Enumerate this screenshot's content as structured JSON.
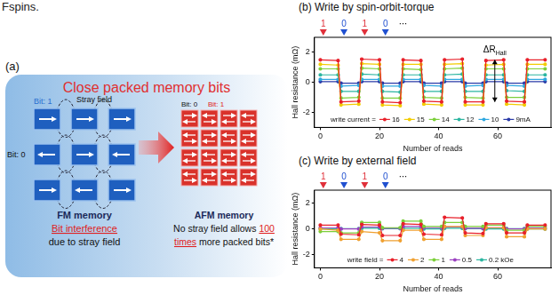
{
  "header_fragment": "Fspins.",
  "panel_a": {
    "label": "(a)",
    "title": "Close packed memory bits",
    "fm": {
      "bit1_label": "Bit: 1",
      "bit0_label": "Bit: 0",
      "stray_label": "Stray field",
      "caption": [
        [
          {
            "text": "FM memory",
            "style": "bold"
          }
        ],
        [
          {
            "text": "Bit interference",
            "style": "red"
          }
        ],
        [
          {
            "text": "due to stray field",
            "style": "plain"
          }
        ]
      ]
    },
    "afm": {
      "bit0_label": "Bit: 0",
      "bit1_label": "Bit: 1",
      "caption": [
        [
          {
            "text": "AFM memory",
            "style": "bold"
          }
        ],
        [
          {
            "text": "No stray field allows ",
            "style": "plain"
          },
          {
            "text": "100",
            "style": "red"
          }
        ],
        [
          {
            "text": "times",
            "style": "red"
          },
          {
            "text": " more packed bits*",
            "style": "plain"
          }
        ]
      ]
    }
  },
  "chart_data": [
    {
      "type": "line",
      "title": "(b) Write by spin-orbit-torque",
      "x_label": "Number of reads",
      "y_label": "Hall resistance (mΩ)",
      "xlim": [
        -2,
        78
      ],
      "xticks": [
        0,
        20,
        40,
        60
      ],
      "ylim": [
        -3,
        3
      ],
      "yticks": [
        -2,
        0,
        2
      ],
      "grid": false,
      "legend": "lower center",
      "legend_title": "write current =",
      "marker": "circle",
      "line_style": "solid",
      "write_markers": [
        {
          "label": "1",
          "x": 1,
          "color": "#e0303a"
        },
        {
          "label": "0",
          "x": 8,
          "color": "#2050d0"
        },
        {
          "label": "1",
          "x": 15,
          "color": "#e0303a"
        },
        {
          "label": "0",
          "x": 22,
          "color": "#2050d0"
        },
        {
          "label": "⋯",
          "x": 28
        }
      ],
      "annotations": [
        {
          "text": "ΔR",
          "subscript": "Hall",
          "x": 59,
          "y": 2.2,
          "arrow_from": -1.3,
          "arrow_to": 1.5
        }
      ],
      "x": [
        0,
        6,
        7,
        13,
        14,
        20,
        21,
        27,
        28,
        34,
        35,
        41,
        42,
        48,
        49,
        55,
        56,
        62,
        63,
        69,
        70,
        76
      ],
      "series": [
        {
          "name": "16",
          "color": "#e8202a",
          "values": [
            1.5,
            1.45,
            -1.3,
            -1.25,
            1.55,
            1.5,
            -1.3,
            -1.35,
            1.5,
            1.45,
            -1.25,
            -1.3,
            1.5,
            1.55,
            -1.3,
            -1.3,
            1.45,
            1.5,
            -1.25,
            -1.3,
            1.5,
            1.5
          ]
        },
        {
          "name": "15",
          "color": "#f2cc00",
          "values": [
            1.2,
            1.15,
            -1.5,
            -1.45,
            1.25,
            1.2,
            -1.5,
            -1.55,
            1.2,
            1.2,
            -1.45,
            -1.5,
            1.2,
            1.25,
            -1.5,
            -1.5,
            1.15,
            1.2,
            -1.45,
            -1.5,
            1.2,
            1.2
          ]
        },
        {
          "name": "14",
          "color": "#7ccf3a",
          "values": [
            0.9,
            0.9,
            -1.05,
            -1.0,
            0.95,
            0.9,
            -1.05,
            -1.05,
            0.9,
            0.85,
            -1.0,
            -1.05,
            0.9,
            0.95,
            -1.0,
            -1.05,
            0.9,
            0.9,
            -1.0,
            -1.0,
            0.9,
            0.9
          ]
        },
        {
          "name": "12",
          "color": "#2bb5a0",
          "values": [
            0.5,
            0.5,
            -0.6,
            -0.6,
            0.55,
            0.5,
            -0.6,
            -0.65,
            0.5,
            0.5,
            -0.6,
            -0.6,
            0.5,
            0.55,
            -0.6,
            -0.6,
            0.5,
            0.5,
            -0.55,
            -0.6,
            0.5,
            0.5
          ]
        },
        {
          "name": "10",
          "color": "#2fa8e0",
          "values": [
            0.2,
            0.2,
            -0.25,
            -0.2,
            0.2,
            0.2,
            -0.25,
            -0.25,
            0.2,
            0.2,
            -0.2,
            -0.25,
            0.2,
            0.2,
            -0.25,
            -0.2,
            0.2,
            0.2,
            -0.2,
            -0.25,
            0.2,
            0.2
          ]
        },
        {
          "name": "9mA",
          "color": "#2a3aa8",
          "values": [
            0.05,
            0.05,
            -0.05,
            -0.05,
            0.05,
            0.05,
            -0.05,
            -0.05,
            0.05,
            0.05,
            -0.05,
            -0.05,
            0.05,
            0.05,
            -0.05,
            -0.05,
            0.05,
            0.05,
            -0.05,
            -0.05,
            0.05,
            0.05
          ]
        }
      ]
    },
    {
      "type": "line",
      "title": "(c) Write by external field",
      "x_label": "Number of reads",
      "y_label": "Hall resistance (mΩ)",
      "xlim": [
        -2,
        78
      ],
      "xticks": [
        0,
        20,
        40,
        60
      ],
      "ylim": [
        -3,
        3
      ],
      "yticks": [
        -2,
        0,
        2
      ],
      "grid": false,
      "legend": "lower center",
      "legend_title": "write field =",
      "marker": "circle",
      "line_style": "solid",
      "write_markers": [
        {
          "label": "1",
          "x": 1,
          "color": "#e0303a"
        },
        {
          "label": "0",
          "x": 8,
          "color": "#2050d0"
        },
        {
          "label": "1",
          "x": 15,
          "color": "#e0303a"
        },
        {
          "label": "0",
          "x": 22,
          "color": "#2050d0"
        },
        {
          "label": "⋯",
          "x": 28
        }
      ],
      "x": [
        0,
        6,
        7,
        13,
        14,
        20,
        21,
        27,
        28,
        34,
        35,
        41,
        42,
        48,
        49,
        55,
        56,
        62,
        63,
        69,
        70,
        76
      ],
      "series": [
        {
          "name": "4",
          "color": "#e8202a",
          "values": [
            0.3,
            0.3,
            -0.4,
            -0.45,
            0.35,
            0.3,
            -0.5,
            -0.5,
            0.4,
            0.35,
            -0.4,
            -0.45,
            0.9,
            0.85,
            -0.3,
            -0.35,
            0.4,
            0.4,
            -0.3,
            -0.3,
            0.3,
            0.3
          ]
        },
        {
          "name": "2",
          "color": "#f0a030",
          "values": [
            0.0,
            -0.1,
            -0.8,
            -0.8,
            -0.2,
            -0.3,
            -0.9,
            -0.9,
            -0.1,
            -0.1,
            -0.8,
            -0.8,
            0.2,
            0.2,
            -0.5,
            -0.5,
            0.1,
            0.1,
            -0.6,
            -0.6,
            0.0,
            0.0
          ]
        },
        {
          "name": "1",
          "color": "#7ccf3a",
          "values": [
            -0.2,
            -0.2,
            -0.3,
            -0.3,
            0.5,
            0.5,
            0.1,
            0.1,
            0.6,
            0.6,
            0.2,
            0.2,
            0.5,
            0.5,
            0.2,
            0.2,
            0.3,
            0.3,
            -0.1,
            -0.1,
            0.2,
            0.2
          ]
        },
        {
          "name": "0.5",
          "color": "#9a40c0",
          "values": [
            0.1,
            0.1,
            0.0,
            0.0,
            0.15,
            0.15,
            0.05,
            0.05,
            0.2,
            0.2,
            0.1,
            0.1,
            0.15,
            0.15,
            0.05,
            0.05,
            0.1,
            0.1,
            0.0,
            0.0,
            0.1,
            0.1
          ]
        },
        {
          "name": "0.2 kOe",
          "color": "#2bb5a0",
          "values": [
            0.0,
            0.0,
            0.02,
            0.02,
            0.05,
            0.05,
            0.02,
            0.02,
            0.05,
            0.05,
            0.0,
            0.0,
            0.05,
            0.05,
            0.02,
            0.02,
            0.0,
            0.0,
            0.02,
            0.02,
            0.0,
            0.0
          ]
        }
      ]
    }
  ]
}
